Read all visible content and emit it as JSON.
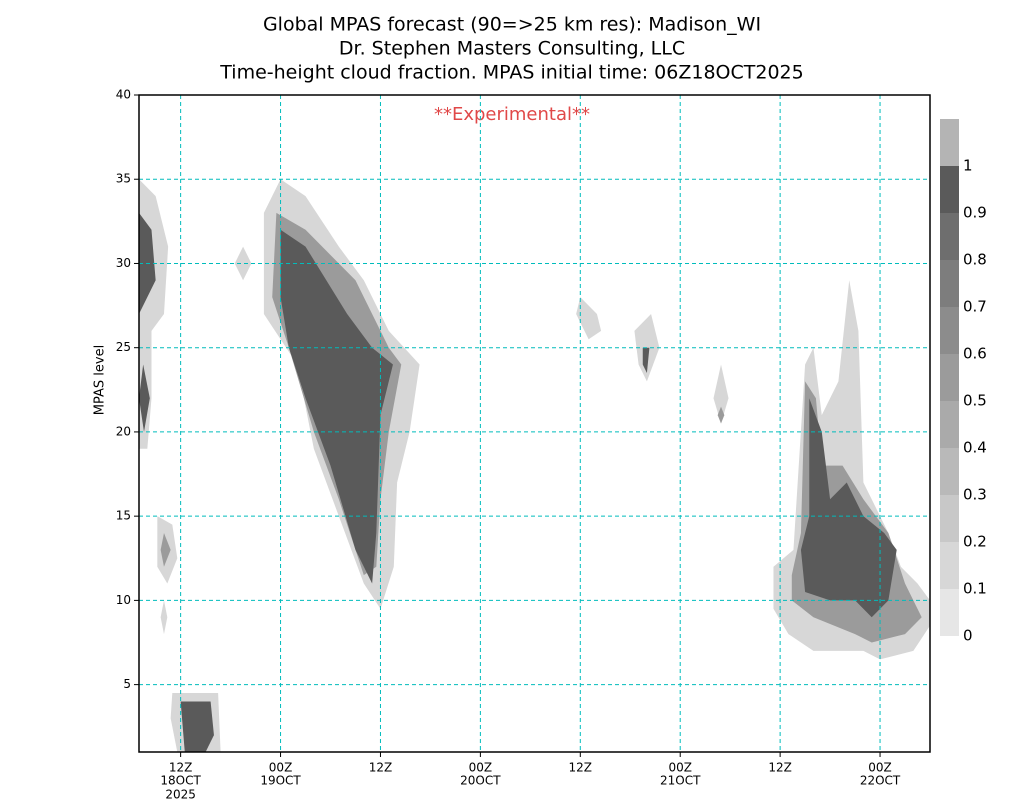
{
  "chart_data": {
    "type": "contour",
    "title": [
      "Global MPAS forecast (90=>25 km res): Madison_WI",
      "Dr. Stephen Masters Consulting, LLC",
      "Time-height cloud fraction.   MPAS initial time: 06Z18OCT2025"
    ],
    "annotation": "**Experimental**",
    "annotation_color": "#e04848",
    "y_label": "MPAS level",
    "xlim": [
      1,
      96
    ],
    "ylim": [
      1,
      40
    ],
    "xticks": [
      {
        "value": 6,
        "label": "12Z"
      },
      {
        "value": 18,
        "label": "00Z"
      },
      {
        "value": 30,
        "label": "12Z"
      },
      {
        "value": 42,
        "label": "00Z"
      },
      {
        "value": 54,
        "label": "12Z"
      },
      {
        "value": 66,
        "label": "00Z"
      },
      {
        "value": 78,
        "label": "12Z"
      },
      {
        "value": 90,
        "label": "00Z"
      }
    ],
    "x_date_labels": [
      {
        "value": 6,
        "label": "18OCT"
      },
      {
        "value": 18,
        "label": "19OCT"
      },
      {
        "value": 42,
        "label": "20OCT"
      },
      {
        "value": 66,
        "label": "21OCT"
      },
      {
        "value": 90,
        "label": "22OCT"
      }
    ],
    "x_year_label": {
      "value": 6,
      "label": "2025"
    },
    "yticks": [
      5,
      10,
      15,
      20,
      25,
      30,
      35,
      40
    ],
    "grid": true,
    "grid_color": "#00bcbc",
    "colorbar": {
      "levels": [
        0,
        0.1,
        0.2,
        0.3,
        0.4,
        0.5,
        0.6,
        0.7,
        0.8,
        0.9,
        1
      ],
      "colors": [
        "#e6e6e6",
        "#d7d7d7",
        "#c8c8c8",
        "#b9b9b9",
        "#aaaaaa",
        "#9b9b9b",
        "#8c8c8c",
        "#7d7d7d",
        "#6e6e6e",
        "#5a5a5a",
        "#b4b4b4"
      ]
    },
    "contours": [
      {
        "level": 0.1,
        "points": [
          [
            1,
            35
          ],
          [
            3,
            34
          ],
          [
            4.5,
            31
          ],
          [
            4,
            27
          ],
          [
            2.5,
            26
          ],
          [
            2.5,
            22
          ],
          [
            2,
            19
          ],
          [
            1,
            19
          ]
        ]
      },
      {
        "level": 0.9,
        "points": [
          [
            1,
            33
          ],
          [
            2.5,
            32
          ],
          [
            3,
            29
          ],
          [
            2,
            28
          ],
          [
            1,
            27
          ]
        ]
      },
      {
        "level": 0.9,
        "points": [
          [
            1.5,
            24
          ],
          [
            2.3,
            22
          ],
          [
            1.6,
            20
          ],
          [
            1,
            22
          ]
        ]
      },
      {
        "level": 0.1,
        "points": [
          [
            3.2,
            15
          ],
          [
            5,
            14.5
          ],
          [
            5.6,
            12.5
          ],
          [
            4.4,
            11
          ],
          [
            3.2,
            12
          ]
        ]
      },
      {
        "level": 0.5,
        "points": [
          [
            4,
            14
          ],
          [
            4.8,
            13
          ],
          [
            4,
            12
          ],
          [
            3.6,
            13
          ]
        ]
      },
      {
        "level": 0.1,
        "points": [
          [
            4,
            10
          ],
          [
            4.4,
            9
          ],
          [
            4,
            8
          ],
          [
            3.6,
            9
          ]
        ]
      },
      {
        "level": 0.1,
        "points": [
          [
            5,
            4.5
          ],
          [
            10.5,
            4.5
          ],
          [
            10.8,
            1
          ],
          [
            5.6,
            1
          ],
          [
            4.8,
            3
          ]
        ]
      },
      {
        "level": 0.9,
        "points": [
          [
            6,
            4
          ],
          [
            9.6,
            4
          ],
          [
            10,
            2
          ],
          [
            9,
            1
          ],
          [
            6.5,
            1
          ]
        ]
      },
      {
        "level": 0.1,
        "points": [
          [
            13.5,
            31
          ],
          [
            14.5,
            30
          ],
          [
            13.5,
            29
          ],
          [
            12.5,
            30
          ]
        ]
      },
      {
        "level": 0.1,
        "points": [
          [
            16,
            33
          ],
          [
            18,
            35
          ],
          [
            21,
            34
          ],
          [
            25,
            31
          ],
          [
            28,
            29
          ],
          [
            31,
            26
          ],
          [
            34.7,
            24
          ],
          [
            33.5,
            20
          ],
          [
            32,
            17
          ],
          [
            31.6,
            12
          ],
          [
            30,
            9.5
          ],
          [
            28,
            11
          ],
          [
            25,
            15
          ],
          [
            22,
            19
          ],
          [
            20,
            24
          ],
          [
            16,
            27
          ]
        ]
      },
      {
        "level": 0.5,
        "points": [
          [
            17.5,
            33
          ],
          [
            21,
            32
          ],
          [
            27,
            29
          ],
          [
            31,
            25
          ],
          [
            32.5,
            24
          ],
          [
            31,
            20
          ],
          [
            30,
            16
          ],
          [
            29.5,
            12
          ],
          [
            28,
            11.5
          ],
          [
            25,
            16
          ],
          [
            22,
            20
          ],
          [
            19,
            25
          ],
          [
            17,
            28
          ]
        ]
      },
      {
        "level": 0.9,
        "points": [
          [
            18,
            32
          ],
          [
            21,
            31
          ],
          [
            26,
            27
          ],
          [
            29,
            25
          ],
          [
            31.5,
            24
          ],
          [
            30,
            21
          ],
          [
            29.5,
            14
          ],
          [
            29,
            11
          ],
          [
            27,
            13
          ],
          [
            24,
            18
          ],
          [
            21,
            22
          ],
          [
            19,
            25
          ],
          [
            18,
            28
          ]
        ]
      },
      {
        "level": 0.1,
        "points": [
          [
            54,
            28
          ],
          [
            56,
            27
          ],
          [
            56.5,
            26
          ],
          [
            55,
            25.5
          ],
          [
            53.5,
            27
          ]
        ]
      },
      {
        "level": 0.1,
        "points": [
          [
            60.5,
            26
          ],
          [
            62.5,
            27
          ],
          [
            63.5,
            25
          ],
          [
            62,
            23
          ],
          [
            61,
            24
          ]
        ]
      },
      {
        "level": 0.9,
        "points": [
          [
            61.5,
            25
          ],
          [
            62.3,
            25
          ],
          [
            62,
            23.5
          ],
          [
            61.5,
            24
          ]
        ]
      },
      {
        "level": 0.1,
        "points": [
          [
            70.9,
            24
          ],
          [
            71.8,
            22
          ],
          [
            70.9,
            20.5
          ],
          [
            70,
            22
          ]
        ]
      },
      {
        "level": 0.5,
        "points": [
          [
            70.9,
            21.5
          ],
          [
            71.3,
            21
          ],
          [
            70.9,
            20.5
          ],
          [
            70.5,
            21
          ]
        ]
      },
      {
        "level": 0.1,
        "points": [
          [
            77.2,
            12
          ],
          [
            79.6,
            13
          ],
          [
            81,
            24
          ],
          [
            82,
            25
          ],
          [
            83,
            21
          ],
          [
            85,
            23
          ],
          [
            86.3,
            29
          ],
          [
            87.4,
            26
          ],
          [
            88,
            17
          ],
          [
            91,
            14
          ],
          [
            92.5,
            12
          ],
          [
            94.5,
            11
          ],
          [
            96,
            10
          ],
          [
            96,
            8.5
          ],
          [
            94,
            7
          ],
          [
            90,
            6.5
          ],
          [
            88,
            7
          ],
          [
            85,
            7
          ],
          [
            82,
            7
          ],
          [
            79,
            8
          ],
          [
            77.2,
            9.5
          ]
        ]
      },
      {
        "level": 0.5,
        "points": [
          [
            79.4,
            11.5
          ],
          [
            80.5,
            14
          ],
          [
            81,
            23
          ],
          [
            82.3,
            22
          ],
          [
            83,
            18
          ],
          [
            85.5,
            18
          ],
          [
            88,
            16
          ],
          [
            91,
            14
          ],
          [
            93,
            11
          ],
          [
            95,
            9
          ],
          [
            93,
            8
          ],
          [
            89,
            7.5
          ],
          [
            87,
            8
          ],
          [
            82,
            9
          ],
          [
            79.4,
            10
          ]
        ]
      },
      {
        "level": 0.9,
        "points": [
          [
            80.5,
            13
          ],
          [
            81.5,
            15
          ],
          [
            81.5,
            22
          ],
          [
            83,
            20
          ],
          [
            84,
            16
          ],
          [
            86,
            17
          ],
          [
            88,
            15
          ],
          [
            90.5,
            14
          ],
          [
            92,
            13
          ],
          [
            91,
            10
          ],
          [
            89,
            9
          ],
          [
            87,
            10
          ],
          [
            84,
            10
          ],
          [
            81,
            10.5
          ]
        ]
      }
    ]
  }
}
